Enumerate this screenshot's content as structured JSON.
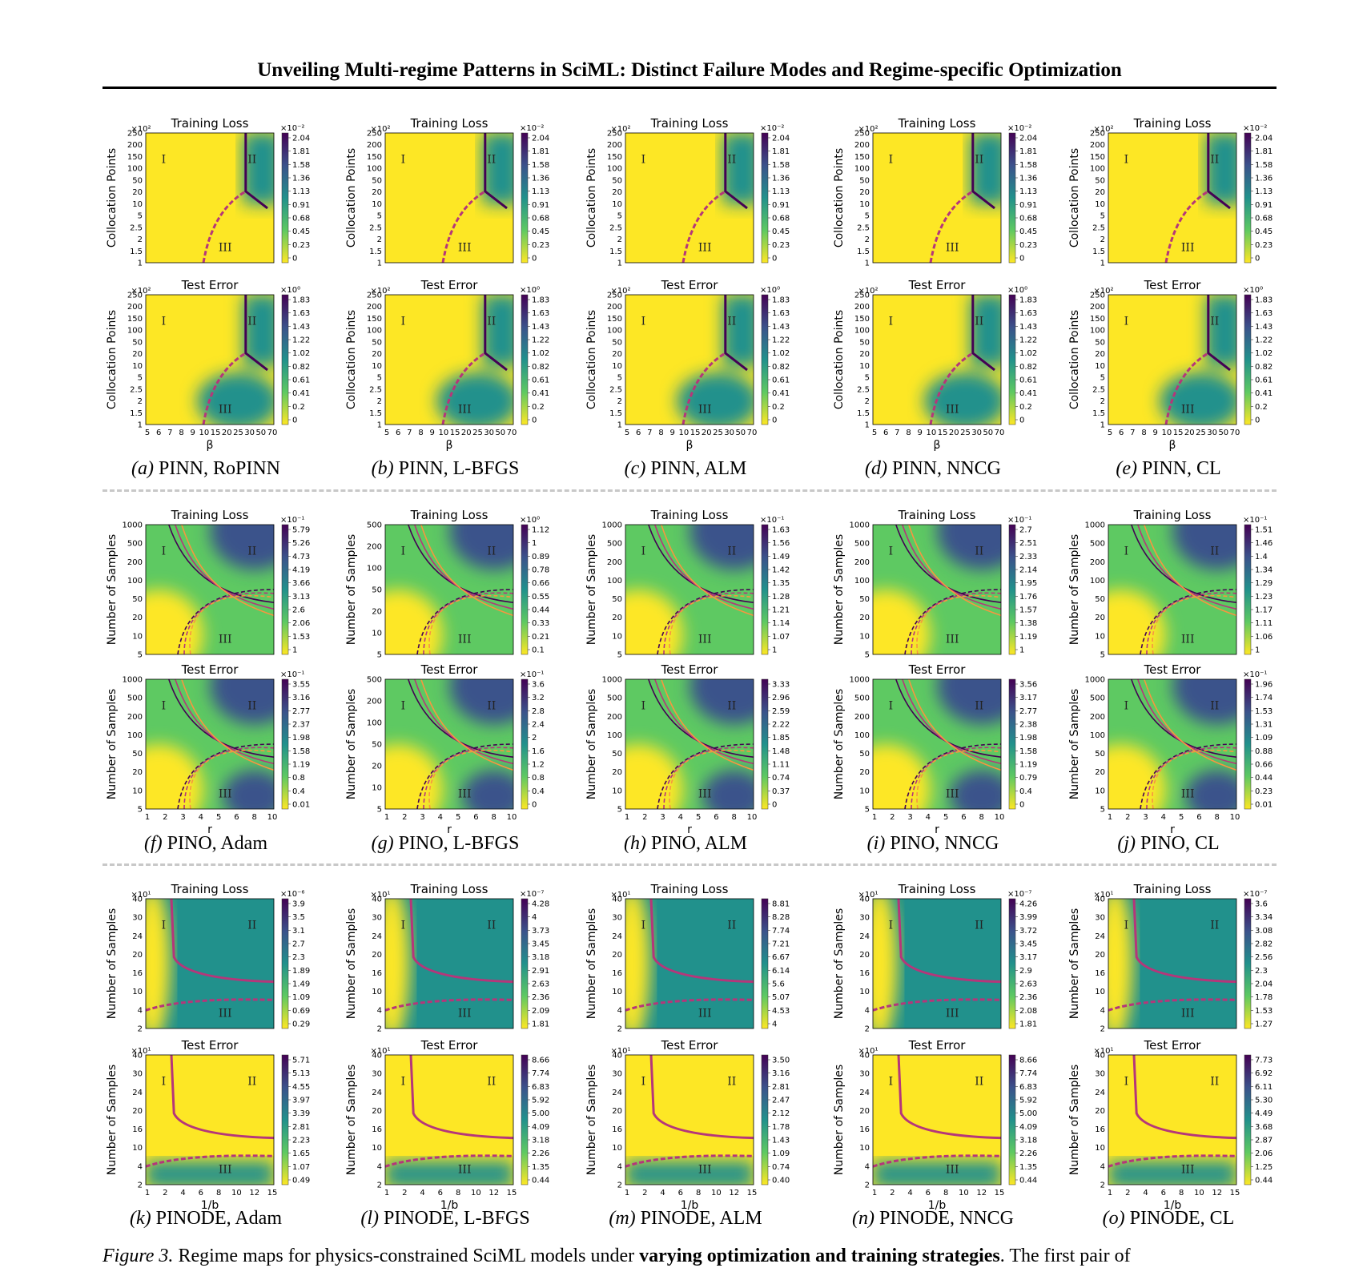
{
  "header": "Unveiling Multi-regime Patterns in SciML: Distinct Failure Modes and Regime-specific Optimization",
  "regions": [
    "I",
    "II",
    "III"
  ],
  "colormap": [
    "#fde725",
    "#5ec962",
    "#21918c",
    "#3b528b",
    "#440154"
  ],
  "panel_titles": {
    "top": "Training Loss",
    "bottom": "Test Error"
  },
  "groups": [
    {
      "ylabel": "Collocation Points",
      "xlabel": "β",
      "x_ticks": [
        "5",
        "6",
        "7",
        "8",
        "9",
        "10",
        "15",
        "20",
        "25",
        "30",
        "50",
        "70"
      ],
      "y_ticks": [
        "1",
        "1.5",
        "2",
        "2.5",
        "5",
        "10",
        "20",
        "50",
        "100",
        "150",
        "200",
        "250"
      ],
      "y_mult": "×10²",
      "panels": [
        {
          "letter": "a",
          "label": "PINN, RoPINN",
          "loss": {
            "exp": "×10⁻²",
            "ticks": [
              "2.04",
              "1.81",
              "1.58",
              "1.36",
              "1.13",
              "0.91",
              "0.68",
              "0.45",
              "0.23",
              "0"
            ]
          },
          "err": {
            "exp": "×10⁰",
            "ticks": [
              "1.83",
              "1.63",
              "1.43",
              "1.22",
              "1.02",
              "0.82",
              "0.61",
              "0.41",
              "0.2",
              "0"
            ]
          }
        },
        {
          "letter": "b",
          "label": "PINN, L-BFGS",
          "loss": {
            "exp": "×10⁻²",
            "ticks": [
              "2.04",
              "1.81",
              "1.58",
              "1.36",
              "1.13",
              "0.91",
              "0.68",
              "0.45",
              "0.23",
              "0"
            ]
          },
          "err": {
            "exp": "×10⁰",
            "ticks": [
              "1.83",
              "1.63",
              "1.43",
              "1.22",
              "1.02",
              "0.82",
              "0.61",
              "0.41",
              "0.2",
              "0"
            ]
          }
        },
        {
          "letter": "c",
          "label": "PINN, ALM",
          "loss": {
            "exp": "×10⁻²",
            "ticks": [
              "2.04",
              "1.81",
              "1.58",
              "1.36",
              "1.13",
              "0.91",
              "0.68",
              "0.45",
              "0.23",
              "0"
            ]
          },
          "err": {
            "exp": "×10⁰",
            "ticks": [
              "1.83",
              "1.63",
              "1.43",
              "1.22",
              "1.02",
              "0.82",
              "0.61",
              "0.41",
              "0.2",
              "0"
            ]
          }
        },
        {
          "letter": "d",
          "label": "PINN, NNCG",
          "loss": {
            "exp": "×10⁻²",
            "ticks": [
              "2.04",
              "1.81",
              "1.58",
              "1.36",
              "1.13",
              "0.91",
              "0.68",
              "0.45",
              "0.23",
              "0"
            ]
          },
          "err": {
            "exp": "×10⁰",
            "ticks": [
              "1.83",
              "1.63",
              "1.43",
              "1.22",
              "1.02",
              "0.82",
              "0.61",
              "0.41",
              "0.2",
              "0"
            ]
          }
        },
        {
          "letter": "e",
          "label": "PINN, CL",
          "loss": {
            "exp": "×10⁻²",
            "ticks": [
              "2.04",
              "1.81",
              "1.58",
              "1.36",
              "1.13",
              "0.91",
              "0.68",
              "0.45",
              "0.23",
              "0"
            ]
          },
          "err": {
            "exp": "×10⁰",
            "ticks": [
              "1.83",
              "1.63",
              "1.43",
              "1.22",
              "1.02",
              "0.82",
              "0.61",
              "0.41",
              "0.2",
              "0"
            ]
          }
        }
      ]
    },
    {
      "ylabel": "Number of Samples",
      "xlabel": "r",
      "x_ticks": [
        "1",
        "2",
        "3",
        "4",
        "5",
        "6",
        "8",
        "10"
      ],
      "y_ticks": [
        "5",
        "10",
        "20",
        "50",
        "100",
        "200",
        "500",
        "1000"
      ],
      "y_mult": "",
      "panels": [
        {
          "letter": "f",
          "label": "PINO, Adam",
          "loss": {
            "exp": "×10⁻¹",
            "ticks": [
              "5.79",
              "5.26",
              "4.73",
              "4.19",
              "3.66",
              "3.13",
              "2.6",
              "2.06",
              "1.53",
              "1"
            ]
          },
          "err": {
            "exp": "×10⁻¹",
            "ticks": [
              "3.55",
              "3.16",
              "2.77",
              "2.37",
              "1.98",
              "1.58",
              "1.19",
              "0.8",
              "0.4",
              "0.01"
            ]
          }
        },
        {
          "letter": "g",
          "label": "PINO, L-BFGS",
          "y_ticks_override": [
            "5",
            "10",
            "20",
            "50",
            "100",
            "200",
            "500"
          ],
          "loss": {
            "exp": "×10⁰",
            "ticks": [
              "1.12",
              "1",
              "0.89",
              "0.78",
              "0.66",
              "0.55",
              "0.44",
              "0.33",
              "0.21",
              "0.1"
            ]
          },
          "err": {
            "exp": "×10⁻¹",
            "ticks": [
              "3.6",
              "3.2",
              "2.8",
              "2.4",
              "2",
              "1.6",
              "1.2",
              "0.8",
              "0.4",
              "0"
            ]
          }
        },
        {
          "letter": "h",
          "label": "PINO, ALM",
          "loss": {
            "exp": "×10⁻¹",
            "ticks": [
              "1.63",
              "1.56",
              "1.49",
              "1.42",
              "1.35",
              "1.28",
              "1.21",
              "1.14",
              "1.07",
              "1"
            ]
          },
          "err": {
            "exp": "",
            "ticks": [
              "3.33",
              "2.96",
              "2.59",
              "2.22",
              "1.85",
              "1.48",
              "1.11",
              "0.74",
              "0.37",
              "0"
            ]
          }
        },
        {
          "letter": "i",
          "label": "PINO, NNCG",
          "loss": {
            "exp": "×10⁻¹",
            "ticks": [
              "2.7",
              "2.51",
              "2.33",
              "2.14",
              "1.95",
              "1.76",
              "1.57",
              "1.38",
              "1.19",
              "1"
            ]
          },
          "err": {
            "exp": "",
            "ticks": [
              "3.56",
              "3.17",
              "2.77",
              "2.38",
              "1.98",
              "1.58",
              "1.19",
              "0.79",
              "0.4",
              "0"
            ]
          }
        },
        {
          "letter": "j",
          "label": "PINO, CL",
          "loss": {
            "exp": "×10⁻¹",
            "ticks": [
              "1.51",
              "1.46",
              "1.4",
              "1.34",
              "1.29",
              "1.23",
              "1.17",
              "1.11",
              "1.06",
              "1"
            ]
          },
          "err": {
            "exp": "×10⁻¹",
            "ticks": [
              "1.96",
              "1.74",
              "1.53",
              "1.31",
              "1.09",
              "0.88",
              "0.66",
              "0.44",
              "0.23",
              "0.01"
            ]
          }
        }
      ]
    },
    {
      "ylabel": "Number of Samples",
      "xlabel": "1/b",
      "x_ticks": [
        "1",
        "2",
        "4",
        "6",
        "8",
        "10",
        "12",
        "15"
      ],
      "y_ticks": [
        "2",
        "4",
        "10",
        "16",
        "20",
        "24",
        "30",
        "40"
      ],
      "y_mult": "×10¹",
      "panels": [
        {
          "letter": "k",
          "label": "PINODE, Adam",
          "loss": {
            "exp": "×10⁻⁶",
            "ticks": [
              "3.9",
              "3.5",
              "3.1",
              "2.7",
              "2.3",
              "1.89",
              "1.49",
              "1.09",
              "0.69",
              "0.29"
            ]
          },
          "err": {
            "exp": "",
            "ticks": [
              "5.71",
              "5.13",
              "4.55",
              "3.97",
              "3.39",
              "2.81",
              "2.23",
              "1.65",
              "1.07",
              "0.49"
            ]
          }
        },
        {
          "letter": "l",
          "label": "PINODE, L-BFGS",
          "loss": {
            "exp": "×10⁻⁷",
            "ticks": [
              "4.28",
              "4",
              "3.73",
              "3.45",
              "3.18",
              "2.91",
              "2.63",
              "2.36",
              "2.09",
              "1.81"
            ]
          },
          "err": {
            "exp": "",
            "ticks": [
              "8.66",
              "7.74",
              "6.83",
              "5.92",
              "5.00",
              "4.09",
              "3.18",
              "2.26",
              "1.35",
              "0.44"
            ]
          }
        },
        {
          "letter": "m",
          "label": "PINODE, ALM",
          "loss": {
            "exp": "",
            "ticks": [
              "8.81",
              "8.28",
              "7.74",
              "7.21",
              "6.67",
              "6.14",
              "5.6",
              "5.07",
              "4.53",
              "4"
            ]
          },
          "err": {
            "exp": "",
            "ticks": [
              "3.50",
              "3.16",
              "2.81",
              "2.47",
              "2.12",
              "1.78",
              "1.43",
              "1.09",
              "0.74",
              "0.40"
            ]
          }
        },
        {
          "letter": "n",
          "label": "PINODE, NNCG",
          "loss": {
            "exp": "×10⁻⁷",
            "ticks": [
              "4.26",
              "3.99",
              "3.72",
              "3.45",
              "3.17",
              "2.9",
              "2.63",
              "2.36",
              "2.08",
              "1.81"
            ]
          },
          "err": {
            "exp": "",
            "ticks": [
              "8.66",
              "7.74",
              "6.83",
              "5.92",
              "5.00",
              "4.09",
              "3.18",
              "2.26",
              "1.35",
              "0.44"
            ]
          }
        },
        {
          "letter": "o",
          "label": "PINODE, CL",
          "loss": {
            "exp": "×10⁻⁷",
            "ticks": [
              "3.6",
              "3.34",
              "3.08",
              "2.82",
              "2.56",
              "2.3",
              "2.04",
              "1.78",
              "1.53",
              "1.27"
            ]
          },
          "err": {
            "exp": "",
            "ticks": [
              "7.73",
              "6.92",
              "6.11",
              "5.30",
              "4.49",
              "3.68",
              "2.87",
              "2.06",
              "1.25",
              "0.44"
            ]
          }
        }
      ]
    }
  ],
  "caption": {
    "label": "Figure 3.",
    "text_before": "Regime maps for physics-constrained SciML models under",
    "bold": "varying optimization and training strategies",
    "text_after": ". The first pair of"
  }
}
